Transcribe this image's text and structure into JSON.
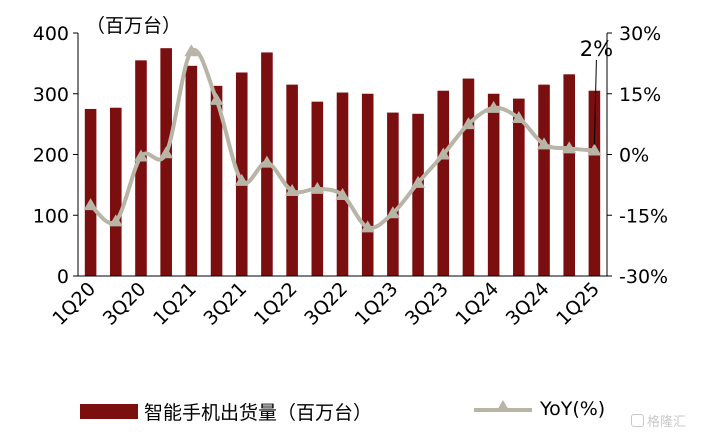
{
  "chart_data": {
    "type": "bar+line",
    "title": "",
    "unit_label": "（百万台）",
    "categories": [
      "1Q20",
      "2Q20",
      "3Q20",
      "4Q20",
      "1Q21",
      "2Q21",
      "3Q21",
      "4Q21",
      "1Q22",
      "2Q22",
      "3Q22",
      "4Q22",
      "1Q23",
      "2Q23",
      "3Q23",
      "4Q23",
      "1Q24",
      "2Q24",
      "3Q24",
      "4Q24",
      "1Q25"
    ],
    "x_tick_labels": [
      "1Q20",
      "3Q20",
      "1Q21",
      "3Q21",
      "1Q22",
      "3Q22",
      "1Q23",
      "3Q23",
      "1Q24",
      "3Q24",
      "1Q25"
    ],
    "series": [
      {
        "name": "智能手机出货量（百万台）",
        "type": "bar",
        "axis": "left",
        "color": "#7b0f0f",
        "values": [
          275,
          277,
          355,
          375,
          346,
          313,
          335,
          368,
          315,
          287,
          302,
          300,
          269,
          267,
          305,
          325,
          300,
          292,
          315,
          332,
          305
        ]
      },
      {
        "name": "YoY(%)",
        "type": "line",
        "axis": "right",
        "color": "#b9b5a6",
        "values": [
          -12.5,
          -16.5,
          -0.5,
          0.3,
          25.5,
          13.5,
          -6.5,
          -2.0,
          -9.0,
          -8.5,
          -10.0,
          -18.0,
          -14.5,
          -7.0,
          0.0,
          7.5,
          11.5,
          9.0,
          2.5,
          1.5,
          1.0
        ]
      }
    ],
    "y_left": {
      "min": 0,
      "max": 400,
      "ticks": [
        "0",
        "100",
        "200",
        "300",
        "400"
      ]
    },
    "y_right": {
      "min": -30,
      "max": 30,
      "ticks": [
        "-30%",
        "-15%",
        "0%",
        "15%",
        "30%"
      ]
    },
    "annotations": [
      {
        "text": "2%",
        "category": "1Q25"
      }
    ],
    "grid": false,
    "legend_position": "bottom"
  },
  "watermark": {
    "text": "格隆汇"
  }
}
